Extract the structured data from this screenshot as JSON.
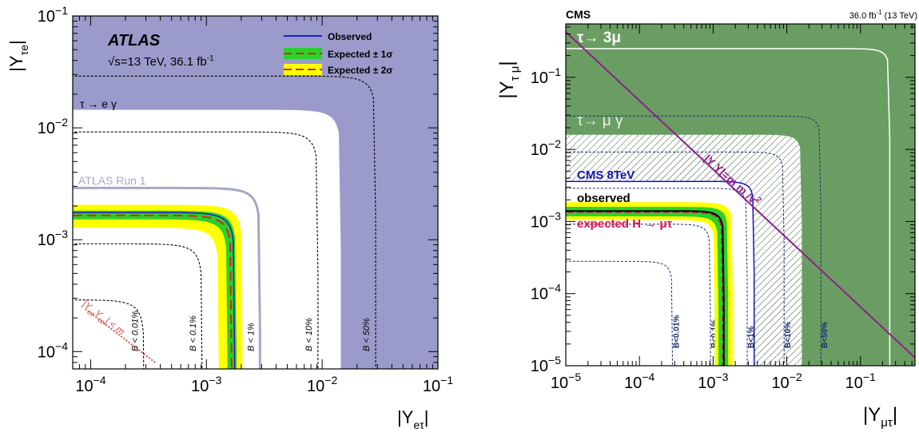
{
  "colors": {
    "atlas_excluded": "#9a9bcb",
    "observed": "#1e1ec8",
    "band_1sigma": "#2ad12a",
    "band_2sigma": "#ffff00",
    "expected": "#e02020",
    "run1": "#a7a7c8",
    "cms_dark": "#2e5a2a",
    "cms_mid": "#6a9d62",
    "cms_8tev": "#1414c0",
    "cms_expected": "#e01050",
    "naturalness": "#8a2286"
  },
  "chart_data": [
    {
      "type": "area",
      "experiment_label": "ATLAS",
      "energy_label": "√s=13 TeV, 36.1 fb",
      "energy_sup": "-1",
      "xlabel_main": "|Y",
      "xlabel_sub": "eτ",
      "ylabel_main": "|Y",
      "ylabel_sub": "τe",
      "log_x": true,
      "log_y": true,
      "xlim": [
        7e-05,
        0.1
      ],
      "ylim": [
        7e-05,
        0.1
      ],
      "x_ticks": [
        {
          "base": "10",
          "exp": "−4",
          "v": 0.0001
        },
        {
          "base": "10",
          "exp": "−3",
          "v": 0.001
        },
        {
          "base": "10",
          "exp": "−2",
          "v": 0.01
        },
        {
          "base": "10",
          "exp": "−1",
          "v": 0.1
        }
      ],
      "y_ticks": [
        {
          "base": "10",
          "exp": "−4",
          "v": 0.0001
        },
        {
          "base": "10",
          "exp": "−3",
          "v": 0.001
        },
        {
          "base": "10",
          "exp": "−2",
          "v": 0.01
        },
        {
          "base": "10",
          "exp": "−1",
          "v": 0.1
        }
      ],
      "legend": {
        "placement": "top-right",
        "entries": [
          {
            "label": "Observed",
            "style": "line"
          },
          {
            "label": "Expected ± 1σ",
            "style": "band1"
          },
          {
            "label": "Expected ± 2σ",
            "style": "band2"
          }
        ]
      },
      "regions": [
        {
          "name": "τ → e γ",
          "kind": "excluded_above",
          "limit": 0.0145
        }
      ],
      "contours": {
        "observed_limit": 0.00175,
        "expected_limit": 0.00165,
        "sigma1": [
          0.00152,
          0.00182
        ],
        "sigma2": [
          0.00128,
          0.00205
        ],
        "run1_limit": 0.0029
      },
      "branching_contours": [
        {
          "label": "B < 0.01%",
          "limit": 0.00029
        },
        {
          "label": "B < 0.1%",
          "limit": 0.00092
        },
        {
          "label": "B < 1%",
          "limit": 0.0029
        },
        {
          "label": "B < 10%",
          "limit": 0.0092
        },
        {
          "label": "B < 50%",
          "limit": 0.029
        }
      ],
      "annotations": {
        "region_label": "τ → e γ",
        "run1_label": "ATLAS Run 1",
        "naturalness_label": "|Y",
        "naturalness_tail": "| < m",
        "naturalness_sub": "eτ",
        "naturalness_sub2": "τe",
        "naturalness_dot": "Y"
      }
    },
    {
      "type": "area",
      "experiment_label": "CMS",
      "lumi_label": "36.0 fb",
      "lumi_sup": "-1",
      "lumi_tail": " (13 TeV)",
      "xlabel_main": "|Y",
      "xlabel_sub": "μτ",
      "ylabel_main": "|Y",
      "ylabel_sub": "τ μ",
      "log_x": true,
      "log_y": true,
      "xlim": [
        1e-05,
        0.55
      ],
      "ylim": [
        1e-05,
        0.55
      ],
      "x_ticks": [
        {
          "base": "10",
          "exp": "−5",
          "v": 1e-05
        },
        {
          "base": "10",
          "exp": "−4",
          "v": 0.0001
        },
        {
          "base": "10",
          "exp": "−3",
          "v": 0.001
        },
        {
          "base": "10",
          "exp": "−2",
          "v": 0.01
        },
        {
          "base": "10",
          "exp": "−1",
          "v": 0.1
        }
      ],
      "y_ticks": [
        {
          "base": "10",
          "exp": "−5",
          "v": 1e-05
        },
        {
          "base": "10",
          "exp": "−4",
          "v": 0.0001
        },
        {
          "base": "10",
          "exp": "−3",
          "v": 0.001
        },
        {
          "base": "10",
          "exp": "−2",
          "v": 0.01
        },
        {
          "base": "10",
          "exp": "−1",
          "v": 0.1
        }
      ],
      "regions": [
        {
          "name": "τ→ 3μ",
          "kind": "excluded_above",
          "limit": 0.25
        },
        {
          "name": "τ→ μ γ",
          "kind": "excluded_above",
          "limit": 0.016
        }
      ],
      "contours": {
        "observed_limit": 0.0014,
        "expected_limit": 0.00135,
        "sigma1": [
          0.00118,
          0.0016
        ],
        "sigma2": [
          0.00105,
          0.00185
        ],
        "cms8tev_limit": 0.0036
      },
      "branching_contours": [
        {
          "label": "B<0.01%",
          "limit": 0.00028
        },
        {
          "label": "B<0.1%",
          "limit": 0.00092
        },
        {
          "label": "B<1%",
          "limit": 0.0029
        },
        {
          "label": "B<10%",
          "limit": 0.0092
        },
        {
          "label": "B<50%",
          "limit": 0.029
        }
      ],
      "annotations": {
        "region_3mu": "τ→ 3μ",
        "region_mugamma": "τ→ μ γ",
        "cms8tev_label": "CMS 8TeV",
        "observed_label": "observed",
        "expected_label": "expected H → μτ",
        "naturalness_label": "|Y",
        "naturalness_mid": " Y",
        "naturalness_tail": "|=m m /v",
        "naturalness_sup": "2"
      }
    }
  ]
}
